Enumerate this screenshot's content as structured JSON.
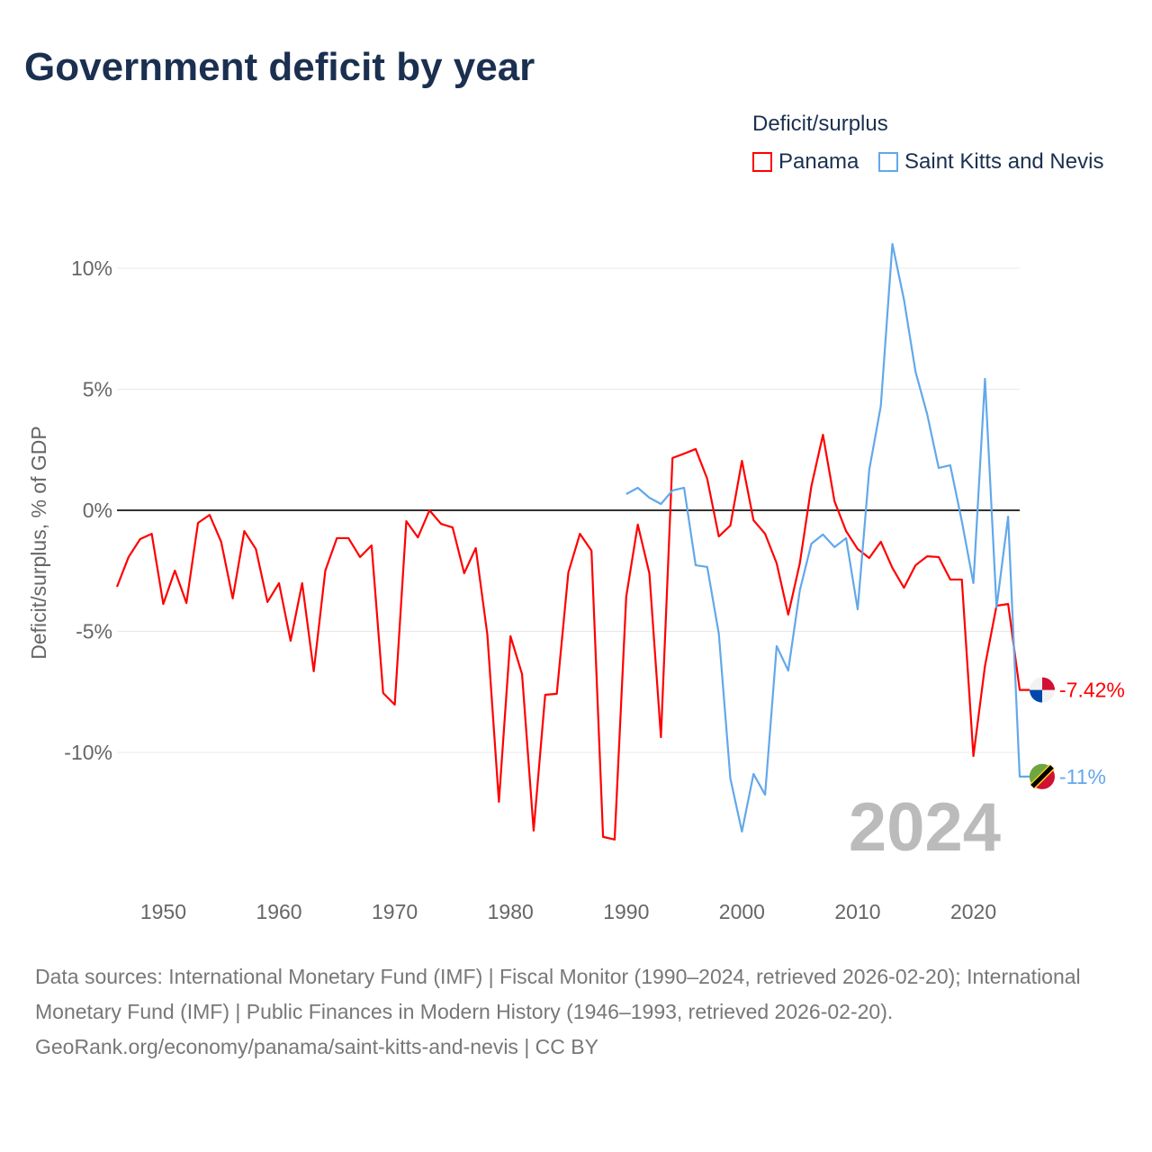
{
  "title": "Government deficit by year",
  "watermark_year": "2024",
  "footer": {
    "sources": "Data sources: International Monetary Fund (IMF) | Fiscal Monitor (1990–2024, retrieved 2026-02-20); International Monetary Fund (IMF) | Public Finances in Modern History (1946–1993, retrieved 2026-02-20).",
    "link": "GeoRank.org/economy/panama/saint-kitts-and-nevis | CC BY"
  },
  "chart_data": {
    "type": "line",
    "title": "Government deficit by year",
    "ylabel": "Deficit/surplus, % of GDP",
    "xlabel": "",
    "ylim": [
      -15,
      11
    ],
    "xlim": [
      1946,
      2024
    ],
    "yticks": [
      10,
      5,
      0,
      -5,
      -10
    ],
    "ytick_labels": [
      "10%",
      "5%",
      "0%",
      "-5%",
      "-10%"
    ],
    "xticks": [
      1950,
      1960,
      1970,
      1980,
      1990,
      2000,
      2010,
      2020
    ],
    "xtick_labels": [
      "1950",
      "1960",
      "1970",
      "1980",
      "1990",
      "2000",
      "2010",
      "2020"
    ],
    "legend_title": "Deficit/surplus",
    "legend_position": "top-right",
    "grid": true,
    "series": [
      {
        "name": "Panama",
        "color": "#ff0000",
        "start_year": 1946,
        "end_label": "-7.42%",
        "values": [
          -3.16,
          -1.93,
          -1.19,
          -0.97,
          -3.87,
          -2.49,
          -3.83,
          -0.52,
          -0.19,
          -1.3,
          -3.64,
          -0.86,
          -1.6,
          -3.79,
          -3.01,
          -5.39,
          -3.01,
          -6.65,
          -2.49,
          -1.15,
          -1.15,
          -1.93,
          -1.45,
          -7.55,
          -8.03,
          -0.45,
          -1.12,
          0.0,
          -0.56,
          -0.71,
          -2.6,
          -1.56,
          -5.13,
          -12.04,
          -5.2,
          -6.77,
          -13.23,
          -7.62,
          -7.58,
          -2.57,
          -0.97,
          -1.67,
          -13.49,
          -13.6,
          -3.57,
          -0.59,
          -2.6,
          -9.37,
          2.16,
          2.34,
          2.53,
          1.3,
          -1.08,
          -0.63,
          2.04,
          -0.41,
          -0.97,
          -2.19,
          -4.31,
          -2.19,
          1.0,
          3.12,
          0.37,
          -0.86,
          -1.6,
          -1.97,
          -1.3,
          -2.38,
          -3.2,
          -2.27,
          -1.9,
          -1.93,
          -2.86,
          -2.86,
          -10.15,
          -6.43,
          -3.94,
          -3.87,
          -7.42
        ]
      },
      {
        "name": "Saint Kitts and Nevis",
        "color": "#62a8ea",
        "start_year": 1990,
        "end_label": "-11%",
        "values": [
          0.67,
          0.93,
          0.52,
          0.26,
          0.82,
          0.93,
          -2.27,
          -2.34,
          -5.09,
          -11.08,
          -13.27,
          -10.89,
          -11.75,
          -5.61,
          -6.62,
          -3.31,
          -1.38,
          -1.0,
          -1.52,
          -1.15,
          -4.09,
          1.67,
          4.31,
          11.0,
          8.7,
          5.72,
          3.98,
          1.75,
          1.86,
          -0.45,
          -3.01,
          5.43,
          -4.01,
          -0.26,
          -11.0
        ]
      }
    ]
  }
}
